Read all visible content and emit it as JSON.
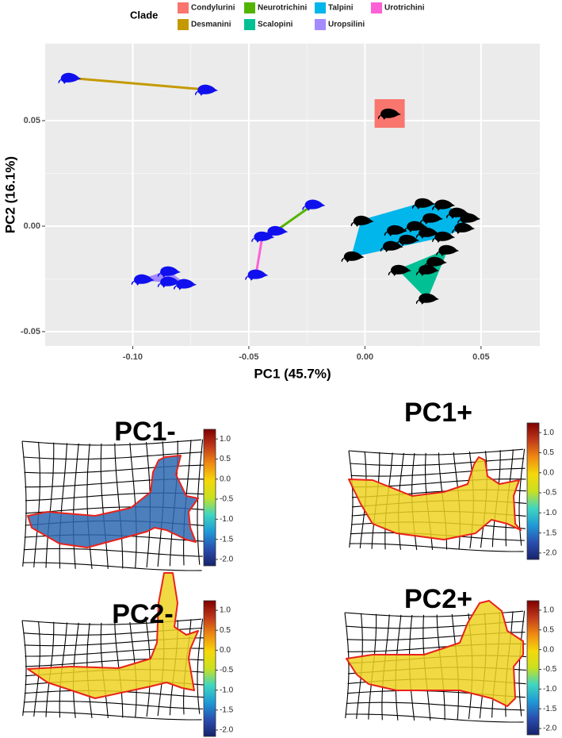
{
  "chart_data": [
    {
      "type": "scatter",
      "xlabel": "PC1 (45.7%)",
      "ylabel": "PC2 (16.1%)",
      "legend_title": "Clade",
      "legend": "top",
      "grid": true,
      "xlim": [
        -0.1377,
        0.0753
      ],
      "ylim": [
        -0.0568,
        0.0865
      ],
      "xticks": [
        {
          "value": -0.1,
          "label": "-0.10"
        },
        -0.05,
        {
          "value": 0,
          "label": "0.00"
        },
        0.05
      ],
      "yticks": [
        -0.05,
        {
          "value": 0,
          "label": "0.00"
        },
        0.05
      ],
      "series": [
        {
          "name": "Condylurini",
          "color": "#f8766d",
          "marker_color": "#000000",
          "x": [
            0.0103
          ],
          "values": [
            0.0534
          ]
        },
        {
          "name": "Desmanini",
          "color": "#c49a00",
          "marker_color": "#1010ee",
          "x": [
            -0.1274,
            -0.0685
          ],
          "values": [
            0.0703,
            0.0647
          ]
        },
        {
          "name": "Neurotrichini",
          "color": "#53b400",
          "marker_color": "#1010ee",
          "x": [
            -0.0223,
            -0.0384
          ],
          "values": [
            0.0102,
            -0.0023
          ]
        },
        {
          "name": "Scalopini",
          "color": "#00c094",
          "marker_color": "#000000",
          "x": [
            0.0147,
            0.0267,
            0.0353,
            0.0301,
            0.0267
          ],
          "values": [
            -0.0207,
            -0.0207,
            -0.0113,
            -0.0169,
            -0.0342
          ]
        },
        {
          "name": "Talpini",
          "color": "#00b6eb",
          "marker_color": "#000000",
          "x": [
            -0.0055,
            -0.0014,
            0.025,
            0.0336,
            0.0397,
            0.0445,
            0.0421,
            0.013,
            0.0216,
            0.0267,
            0.0336,
            0.0182,
            0.0113,
            0.0284
          ],
          "values": [
            -0.0143,
            0.0026,
            0.0109,
            0.0102,
            0.0064,
            0.0038,
            -0.0008,
            -0.0019,
            0,
            -0.003,
            -0.0049,
            -0.0064,
            -0.0094,
            0.0038
          ]
        },
        {
          "name": "Uropsilini",
          "color": "#a58aff",
          "marker_color": "#1010ee",
          "x": [
            -0.0959,
            -0.0846,
            -0.0846,
            -0.0777
          ],
          "values": [
            -0.0252,
            -0.0214,
            -0.0263,
            -0.0274
          ]
        },
        {
          "name": "Urotrichini",
          "color": "#fb61d7",
          "marker_color": "#1010ee",
          "x": [
            -0.0442,
            -0.0469
          ],
          "values": [
            -0.0049,
            -0.0229
          ]
        }
      ]
    },
    {
      "type": "colorbar",
      "title": "PC1-",
      "ylim": [
        -2.16,
        1.24
      ],
      "colorscale": [
        "#7f0000",
        "#c0391b",
        "#f08a12",
        "#f5d80a",
        "#c9e020",
        "#3fd6c0",
        "#1f9ad6",
        "#2a4fb0",
        "#17226b"
      ],
      "yticks": [
        {
          "value": 1,
          "label": "1.0"
        },
        0.5,
        {
          "value": 0,
          "label": "0.0"
        },
        -0.5,
        {
          "value": -1,
          "label": "-1.0"
        },
        -1.5,
        {
          "value": -2,
          "label": "-2.0"
        }
      ]
    },
    {
      "type": "colorbar",
      "title": "PC1+",
      "ylim": [
        -2.16,
        1.24
      ],
      "colorscale": [
        "#7f0000",
        "#c0391b",
        "#f08a12",
        "#f5d80a",
        "#c9e020",
        "#3fd6c0",
        "#1f9ad6",
        "#2a4fb0",
        "#17226b"
      ],
      "yticks": [
        {
          "value": 1,
          "label": "1.0"
        },
        0.5,
        {
          "value": 0,
          "label": "0.0"
        },
        -0.5,
        {
          "value": -1,
          "label": "-1.0"
        },
        -1.5,
        {
          "value": -2,
          "label": "-2.0"
        }
      ]
    },
    {
      "type": "colorbar",
      "title": "PC2-",
      "ylim": [
        -2.16,
        1.24
      ],
      "colorscale": [
        "#7f0000",
        "#c0391b",
        "#f08a12",
        "#f5d80a",
        "#c9e020",
        "#3fd6c0",
        "#1f9ad6",
        "#2a4fb0",
        "#17226b"
      ],
      "yticks": [
        {
          "value": 1,
          "label": "1.0"
        },
        0.5,
        {
          "value": 0,
          "label": "0.0"
        },
        -0.5,
        {
          "value": -1,
          "label": "-1.0"
        },
        -1.5,
        {
          "value": -2,
          "label": "-2.0"
        }
      ]
    },
    {
      "type": "colorbar",
      "title": "PC2+",
      "ylim": [
        -2.16,
        1.24
      ],
      "colorscale": [
        "#7f0000",
        "#c0391b",
        "#f08a12",
        "#f5d80a",
        "#c9e020",
        "#3fd6c0",
        "#1f9ad6",
        "#2a4fb0",
        "#17226b"
      ],
      "yticks": [
        {
          "value": 1,
          "label": "1.0"
        },
        0.5,
        {
          "value": 0,
          "label": "0.0"
        },
        -0.5,
        {
          "value": -1,
          "label": "-1.0"
        },
        -1.5,
        {
          "value": -2,
          "label": "-2.0"
        }
      ]
    }
  ]
}
